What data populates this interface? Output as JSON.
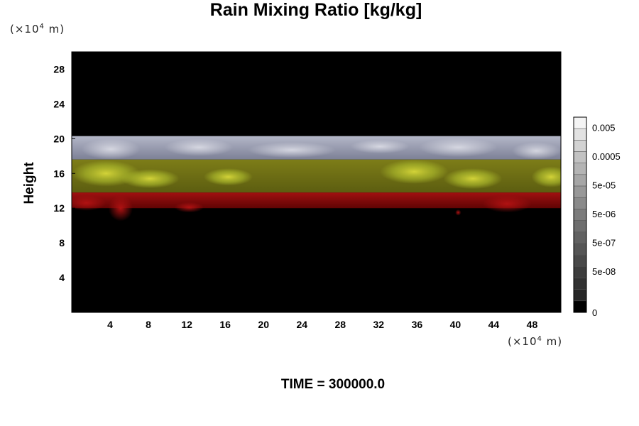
{
  "chart_data": {
    "type": "heatmap",
    "title": "Rain Mixing Ratio [kg/kg]",
    "ylabel": "Height",
    "xlabel": "",
    "x_unit": {
      "prefix": "(×10",
      "exp": "4",
      "suffix": " m)"
    },
    "y_unit": {
      "prefix": "(×10",
      "exp": "4",
      "suffix": " m)"
    },
    "x_ticks": [
      4,
      8,
      12,
      16,
      20,
      24,
      28,
      32,
      36,
      40,
      44,
      48
    ],
    "y_ticks": [
      4,
      8,
      12,
      16,
      20,
      24,
      28
    ],
    "xlim": [
      0,
      51
    ],
    "ylim": [
      0,
      30
    ],
    "colorbar": {
      "labels": [
        "0.005",
        "0.0005",
        "5e-05",
        "5e-06",
        "5e-07",
        "5e-08",
        "0"
      ],
      "levels": [
        0.005,
        0.0005,
        5e-05,
        5e-06,
        5e-07,
        5e-08,
        0
      ],
      "colors": [
        "#f4f4f4",
        "#e2e2e2",
        "#d2d2d2",
        "#c2c2c2",
        "#b4b4b4",
        "#a6a6a6",
        "#989898",
        "#8a8a8a",
        "#7c7c7c",
        "#6e6e6e",
        "#616161",
        "#555555",
        "#494949",
        "#3d3d3d",
        "#323232",
        "#272727",
        "#000000"
      ]
    },
    "layers": [
      {
        "name": "upper",
        "bottom": 17.6,
        "top": 20.3,
        "color": "#8e93a8"
      },
      {
        "name": "middle",
        "bottom": 13.8,
        "top": 17.6,
        "color": "#6e6f14"
      },
      {
        "name": "lower",
        "bottom": 12.0,
        "top": 13.8,
        "color": "#8a0a0a"
      }
    ],
    "footer": "TIME = 300000.0"
  }
}
